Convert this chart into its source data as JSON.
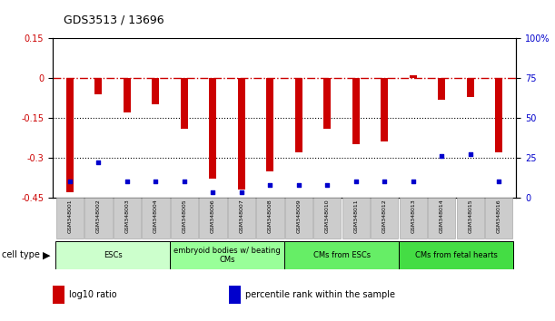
{
  "title": "GDS3513 / 13696",
  "samples": [
    "GSM348001",
    "GSM348002",
    "GSM348003",
    "GSM348004",
    "GSM348005",
    "GSM348006",
    "GSM348007",
    "GSM348008",
    "GSM348009",
    "GSM348010",
    "GSM348011",
    "GSM348012",
    "GSM348013",
    "GSM348014",
    "GSM348015",
    "GSM348016"
  ],
  "log10_ratio": [
    -0.43,
    -0.06,
    -0.13,
    -0.1,
    -0.19,
    -0.38,
    -0.42,
    -0.35,
    -0.28,
    -0.19,
    -0.25,
    -0.24,
    0.01,
    -0.08,
    -0.07,
    -0.28
  ],
  "percentile_rank": [
    10,
    22,
    10,
    10,
    10,
    3,
    3,
    8,
    8,
    8,
    10,
    10,
    10,
    26,
    27,
    10
  ],
  "cell_types": [
    {
      "label": "ESCs",
      "start": 0,
      "end": 4,
      "color": "#ccffcc"
    },
    {
      "label": "embryoid bodies w/ beating\nCMs",
      "start": 4,
      "end": 8,
      "color": "#99ff99"
    },
    {
      "label": "CMs from ESCs",
      "start": 8,
      "end": 12,
      "color": "#66ee66"
    },
    {
      "label": "CMs from fetal hearts",
      "start": 12,
      "end": 16,
      "color": "#44dd44"
    }
  ],
  "ylim_left": [
    -0.45,
    0.15
  ],
  "ylim_right": [
    0,
    100
  ],
  "yticks_left": [
    0.15,
    0.0,
    -0.15,
    -0.3,
    -0.45
  ],
  "yticks_right": [
    100,
    75,
    50,
    25,
    0
  ],
  "bar_color": "#cc0000",
  "dot_color": "#0000cc",
  "ref_line_color": "#cc0000",
  "grid_line_color": "#000000",
  "bg_color": "#ffffff",
  "plot_bg_color": "#ffffff",
  "tick_label_area_color": "#cccccc",
  "legend_items": [
    {
      "label": "log10 ratio",
      "color": "#cc0000"
    },
    {
      "label": "percentile rank within the sample",
      "color": "#0000cc"
    }
  ]
}
